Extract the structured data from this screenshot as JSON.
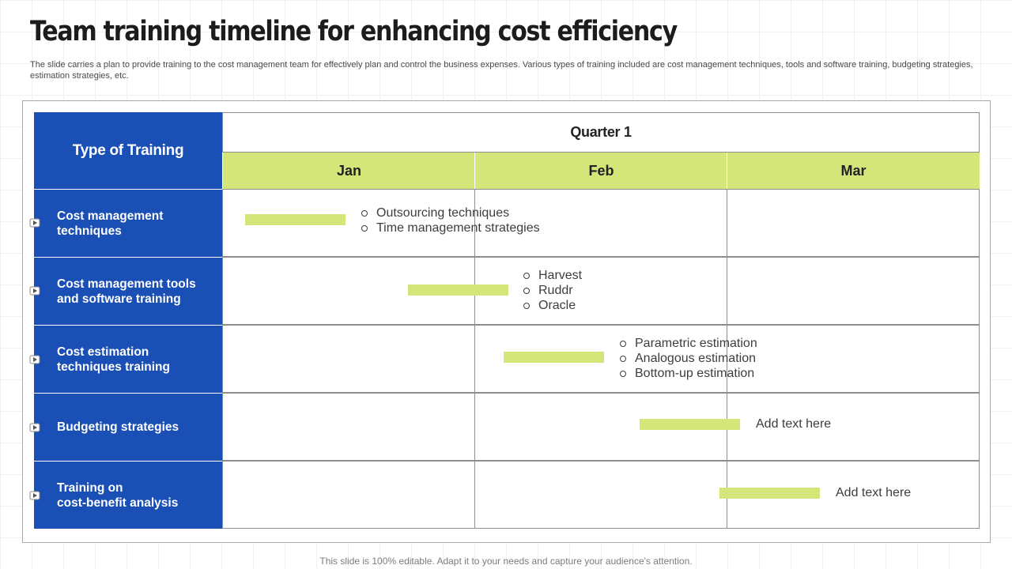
{
  "title": "Team training timeline for enhancing cost efficiency",
  "description": "The slide carries a plan to provide training to the cost management team for effectively  plan and control the business expenses. Various types of training included are cost management techniques, tools and software training, budgeting strategies, estimation strategies, etc.",
  "table": {
    "type_header": "Type of Training",
    "quarter": "Quarter 1",
    "months": [
      "Jan",
      "Feb",
      "Mar"
    ],
    "rows": [
      {
        "label": "Cost management\ntechniques",
        "notes": [
          "Outsourcing techniques",
          "Time management strategies"
        ]
      },
      {
        "label": "Cost management tools\nand software training",
        "notes": [
          "Harvest",
          "Ruddr",
          "Oracle"
        ]
      },
      {
        "label": "Cost estimation\ntechniques training",
        "notes": [
          "Parametric estimation",
          "Analogous estimation",
          "Bottom-up estimation"
        ]
      },
      {
        "label": "Budgeting strategies",
        "note": "Add text here"
      },
      {
        "label": "Training on\ncost-benefit analysis",
        "note": "Add text here"
      }
    ]
  },
  "footer": "This slide is 100% editable. Adapt it to your needs and capture your audience's attention.",
  "colors": {
    "header_blue": "#1a4fb5",
    "bar_green": "#d4e57a"
  },
  "icons": {
    "row_marker": "arrow-icon"
  }
}
